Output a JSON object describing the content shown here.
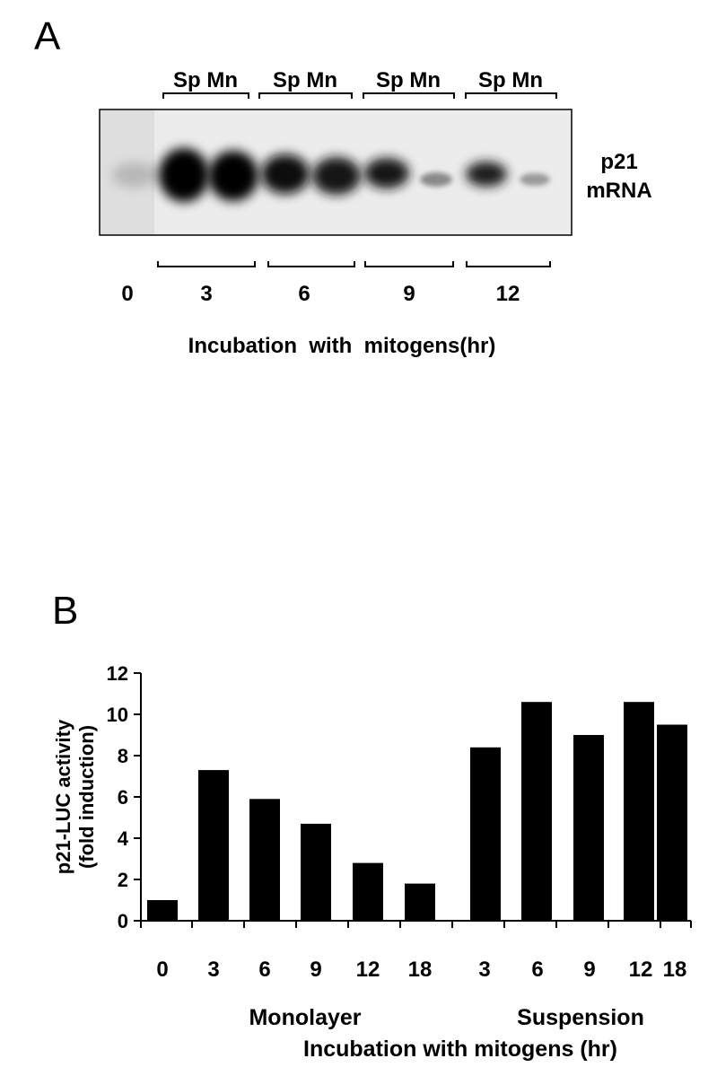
{
  "panel_a": {
    "letter": "A",
    "lane_pair_labels": [
      "Sp Mn",
      "Sp Mn",
      "Sp Mn",
      "Sp Mn"
    ],
    "band_label_line1": "p21",
    "band_label_line2": "mRNA",
    "time_labels": [
      "0",
      "3",
      "6",
      "9",
      "12"
    ],
    "xlabel": "Incubation  with  mitogens(hr)"
  },
  "panel_b": {
    "letter": "B"
  },
  "chart_data": {
    "type": "bar",
    "ylabel_line1": "p21-LUC activity",
    "ylabel_line2": "(fold induction)",
    "ylim": [
      0,
      12
    ],
    "yticks": [
      "0",
      "2",
      "4",
      "6",
      "8",
      "10",
      "12"
    ],
    "groups": [
      {
        "name": "Monolayer",
        "categories": [
          "0",
          "3",
          "6",
          "9",
          "12",
          "18"
        ],
        "values": [
          1.0,
          7.3,
          5.9,
          4.7,
          2.8,
          1.8
        ]
      },
      {
        "name": "Suspension",
        "categories": [
          "3",
          "6",
          "9",
          "12",
          "18"
        ],
        "values": [
          8.4,
          10.6,
          9.0,
          10.6,
          9.5
        ]
      }
    ],
    "xlabel": "Incubation with mitogens (hr)",
    "grid": false,
    "legend": "none"
  }
}
